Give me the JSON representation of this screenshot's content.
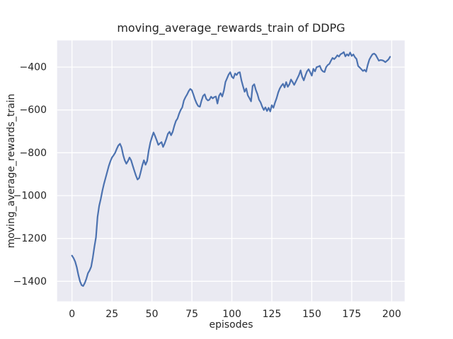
{
  "chart_data": {
    "type": "line",
    "title": "moving_average_rewards_train of DDPG",
    "xlabel": "episodes",
    "ylabel": "moving_average_rewards_train",
    "x_tick_values": [
      0,
      25,
      50,
      75,
      100,
      125,
      150,
      175,
      200
    ],
    "x_tick_labels": [
      "0",
      "25",
      "50",
      "75",
      "100",
      "125",
      "150",
      "175",
      "200"
    ],
    "y_tick_values": [
      -400,
      -600,
      -800,
      -1000,
      -1200,
      -1400
    ],
    "y_tick_labels": [
      "−400",
      "−600",
      "−800",
      "−1000",
      "−1200",
      "−1400"
    ],
    "xlim": [
      -9.3,
      208.1
    ],
    "ylim": [
      -1493.6,
      -275.7
    ],
    "grid": true,
    "legend_position": "none",
    "colors": {
      "line": "#4c72b0",
      "plot_bg": "#eaeaf2",
      "grid": "#ffffff",
      "text": "#262626",
      "figure_bg": "#ffffff"
    },
    "series": [
      {
        "name": "moving_average_rewards_train",
        "x": [
          0,
          1,
          2,
          3,
          4,
          5,
          6,
          7,
          8,
          9,
          10,
          11,
          12,
          13,
          14,
          15,
          16,
          17,
          18,
          19,
          20,
          21,
          22,
          23,
          24,
          25,
          26,
          27,
          28,
          29,
          30,
          31,
          32,
          33,
          34,
          35,
          36,
          37,
          38,
          39,
          40,
          41,
          42,
          43,
          44,
          45,
          46,
          47,
          48,
          49,
          50,
          51,
          52,
          53,
          54,
          55,
          56,
          57,
          58,
          59,
          60,
          61,
          62,
          63,
          64,
          65,
          66,
          67,
          68,
          69,
          70,
          71,
          72,
          73,
          74,
          75,
          76,
          77,
          78,
          79,
          80,
          81,
          82,
          83,
          84,
          85,
          86,
          87,
          88,
          89,
          90,
          91,
          92,
          93,
          94,
          95,
          96,
          97,
          98,
          99,
          100,
          101,
          102,
          103,
          104,
          105,
          106,
          107,
          108,
          109,
          110,
          111,
          112,
          113,
          114,
          115,
          116,
          117,
          118,
          119,
          120,
          121,
          122,
          123,
          124,
          125,
          126,
          127,
          128,
          129,
          130,
          131,
          132,
          133,
          134,
          135,
          136,
          137,
          138,
          139,
          140,
          141,
          142,
          143,
          144,
          145,
          146,
          147,
          148,
          149,
          150,
          151,
          152,
          153,
          154,
          155,
          156,
          157,
          158,
          159,
          160,
          161,
          162,
          163,
          164,
          165,
          166,
          167,
          168,
          169,
          170,
          171,
          172,
          173,
          174,
          175,
          176,
          177,
          178,
          179,
          180,
          181,
          182,
          183,
          184,
          185,
          186,
          187,
          188,
          189,
          190,
          191,
          192,
          193,
          194,
          195,
          196,
          197,
          198,
          199
        ],
        "y": [
          -1280,
          -1292,
          -1308,
          -1335,
          -1370,
          -1400,
          -1418,
          -1422,
          -1408,
          -1388,
          -1362,
          -1350,
          -1332,
          -1290,
          -1240,
          -1195,
          -1100,
          -1048,
          -1015,
          -978,
          -945,
          -918,
          -890,
          -863,
          -840,
          -822,
          -812,
          -800,
          -782,
          -766,
          -758,
          -775,
          -810,
          -835,
          -851,
          -838,
          -822,
          -836,
          -860,
          -884,
          -906,
          -925,
          -918,
          -890,
          -858,
          -835,
          -856,
          -838,
          -790,
          -752,
          -728,
          -705,
          -722,
          -742,
          -763,
          -756,
          -750,
          -773,
          -756,
          -735,
          -712,
          -702,
          -718,
          -702,
          -675,
          -652,
          -640,
          -618,
          -600,
          -588,
          -556,
          -540,
          -528,
          -512,
          -502,
          -508,
          -530,
          -552,
          -570,
          -582,
          -585,
          -558,
          -535,
          -527,
          -548,
          -556,
          -552,
          -538,
          -546,
          -540,
          -537,
          -570,
          -534,
          -522,
          -537,
          -510,
          -470,
          -452,
          -435,
          -424,
          -445,
          -452,
          -430,
          -437,
          -426,
          -424,
          -462,
          -490,
          -515,
          -500,
          -532,
          -545,
          -560,
          -488,
          -480,
          -506,
          -526,
          -552,
          -565,
          -585,
          -600,
          -588,
          -605,
          -590,
          -607,
          -578,
          -590,
          -566,
          -545,
          -518,
          -500,
          -487,
          -478,
          -495,
          -470,
          -492,
          -480,
          -458,
          -470,
          -483,
          -468,
          -452,
          -437,
          -415,
          -445,
          -462,
          -440,
          -420,
          -410,
          -424,
          -440,
          -408,
          -420,
          -400,
          -398,
          -394,
          -412,
          -420,
          -423,
          -400,
          -390,
          -385,
          -370,
          -357,
          -363,
          -355,
          -345,
          -351,
          -340,
          -336,
          -330,
          -350,
          -340,
          -347,
          -332,
          -348,
          -341,
          -354,
          -362,
          -395,
          -402,
          -410,
          -418,
          -413,
          -421,
          -390,
          -365,
          -352,
          -340,
          -337,
          -343,
          -357,
          -370,
          -367,
          -368,
          -371,
          -377,
          -371,
          -364,
          -352
        ]
      }
    ]
  }
}
